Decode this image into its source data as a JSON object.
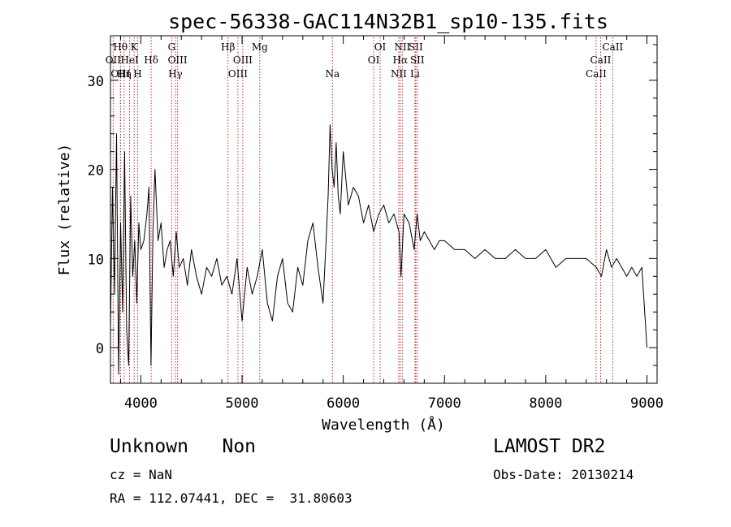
{
  "chart_data": {
    "type": "line",
    "title": "spec-56338-GAC114N32B1_sp10-135.fits",
    "xlabel": "Wavelength (Å)",
    "ylabel": "Flux (relative)",
    "xlim": [
      3700,
      9100
    ],
    "ylim": [
      -4,
      35
    ],
    "x_ticks": [
      4000,
      5000,
      6000,
      7000,
      8000,
      9000
    ],
    "y_ticks": [
      0,
      10,
      20,
      30
    ],
    "line_color": "#000000",
    "marker_line_color": "#b22222",
    "grid": false,
    "series": [
      {
        "x": [
          3700,
          3720,
          3740,
          3760,
          3780,
          3800,
          3820,
          3840,
          3860,
          3880,
          3900,
          3920,
          3940,
          3960,
          3980,
          4000,
          4030,
          4060,
          4080,
          4100,
          4120,
          4140,
          4170,
          4200,
          4230,
          4260,
          4290,
          4320,
          4350,
          4380,
          4420,
          4460,
          4500,
          4550,
          4600,
          4650,
          4700,
          4750,
          4800,
          4850,
          4900,
          4950,
          5000,
          5050,
          5100,
          5150,
          5200,
          5250,
          5300,
          5350,
          5400,
          5450,
          5500,
          5550,
          5600,
          5650,
          5700,
          5750,
          5800,
          5830,
          5850,
          5870,
          5890,
          5910,
          5930,
          5950,
          5970,
          6000,
          6050,
          6100,
          6150,
          6200,
          6250,
          6300,
          6350,
          6400,
          6450,
          6500,
          6550,
          6570,
          6600,
          6650,
          6700,
          6730,
          6760,
          6800,
          6850,
          6900,
          6950,
          7000,
          7100,
          7200,
          7300,
          7400,
          7500,
          7600,
          7700,
          7800,
          7900,
          8000,
          8100,
          8200,
          8300,
          8400,
          8500,
          8550,
          8600,
          8650,
          8700,
          8750,
          8800,
          8850,
          8900,
          8950,
          9000
        ],
        "y": [
          2,
          18,
          6,
          24,
          -3,
          14,
          4,
          22,
          2,
          -2,
          17,
          8,
          12,
          5,
          14,
          11,
          12,
          15,
          18,
          -2,
          13,
          20,
          12,
          14,
          9,
          11,
          12,
          8,
          13,
          9,
          10,
          7,
          11,
          8,
          6,
          9,
          8,
          10,
          7,
          8,
          6,
          10,
          3,
          9,
          6,
          8,
          11,
          5,
          3,
          8,
          10,
          5,
          4,
          9,
          7,
          12,
          14,
          9,
          5,
          12,
          17,
          25,
          20,
          18,
          23,
          17,
          15,
          22,
          16,
          18,
          17,
          14,
          16,
          13,
          15,
          16,
          14,
          15,
          13,
          8,
          15,
          14,
          11,
          15,
          12,
          13,
          12,
          11,
          12,
          12,
          11,
          11,
          10,
          11,
          10,
          10,
          11,
          10,
          10,
          11,
          9,
          10,
          10,
          10,
          9,
          8,
          11,
          9,
          10,
          9,
          8,
          9,
          8,
          9,
          0
        ]
      }
    ],
    "line_markers": [
      {
        "label": "OII",
        "wavelength": 3727,
        "row": 2
      },
      {
        "label": "Hθ",
        "wavelength": 3798,
        "row": 1
      },
      {
        "label": "OIII",
        "wavelength": 3800,
        "row": 3
      },
      {
        "label": "Hη",
        "wavelength": 3835,
        "row": 3
      },
      {
        "label": "HeI",
        "wavelength": 3889,
        "row": 2
      },
      {
        "label": "K",
        "wavelength": 3934,
        "row": 1
      },
      {
        "label": "H",
        "wavelength": 3969,
        "row": 3
      },
      {
        "label": "Hδ",
        "wavelength": 4102,
        "row": 2
      },
      {
        "label": "G",
        "wavelength": 4305,
        "row": 1
      },
      {
        "label": "Hγ",
        "wavelength": 4341,
        "row": 3
      },
      {
        "label": "OIII",
        "wavelength": 4363,
        "row": 2
      },
      {
        "label": "Hβ",
        "wavelength": 4861,
        "row": 1
      },
      {
        "label": "OIII",
        "wavelength": 4959,
        "row": 3
      },
      {
        "label": "OIII",
        "wavelength": 5007,
        "row": 2
      },
      {
        "label": "Mg",
        "wavelength": 5175,
        "row": 1
      },
      {
        "label": "Na",
        "wavelength": 5893,
        "row": 3
      },
      {
        "label": "OI",
        "wavelength": 6300,
        "row": 2
      },
      {
        "label": "OI",
        "wavelength": 6364,
        "row": 1
      },
      {
        "label": "NII",
        "wavelength": 6548,
        "row": 3
      },
      {
        "label": "Hα",
        "wavelength": 6563,
        "row": 2
      },
      {
        "label": "NII",
        "wavelength": 6583,
        "row": 1
      },
      {
        "label": "Li",
        "wavelength": 6708,
        "row": 3
      },
      {
        "label": "SII",
        "wavelength": 6716,
        "row": 1
      },
      {
        "label": "SII",
        "wavelength": 6731,
        "row": 2
      },
      {
        "label": "CaII",
        "wavelength": 8498,
        "row": 3
      },
      {
        "label": "CaII",
        "wavelength": 8542,
        "row": 2
      },
      {
        "label": "CaII",
        "wavelength": 8662,
        "row": 1
      }
    ]
  },
  "info": {
    "class_text": "Unknown   Non",
    "survey": "LAMOST DR2",
    "cz": "cz = NaN",
    "obs_date": "Obs-Date: 20130214",
    "coords": "RA = 112.07441, DEC =  31.80603"
  }
}
